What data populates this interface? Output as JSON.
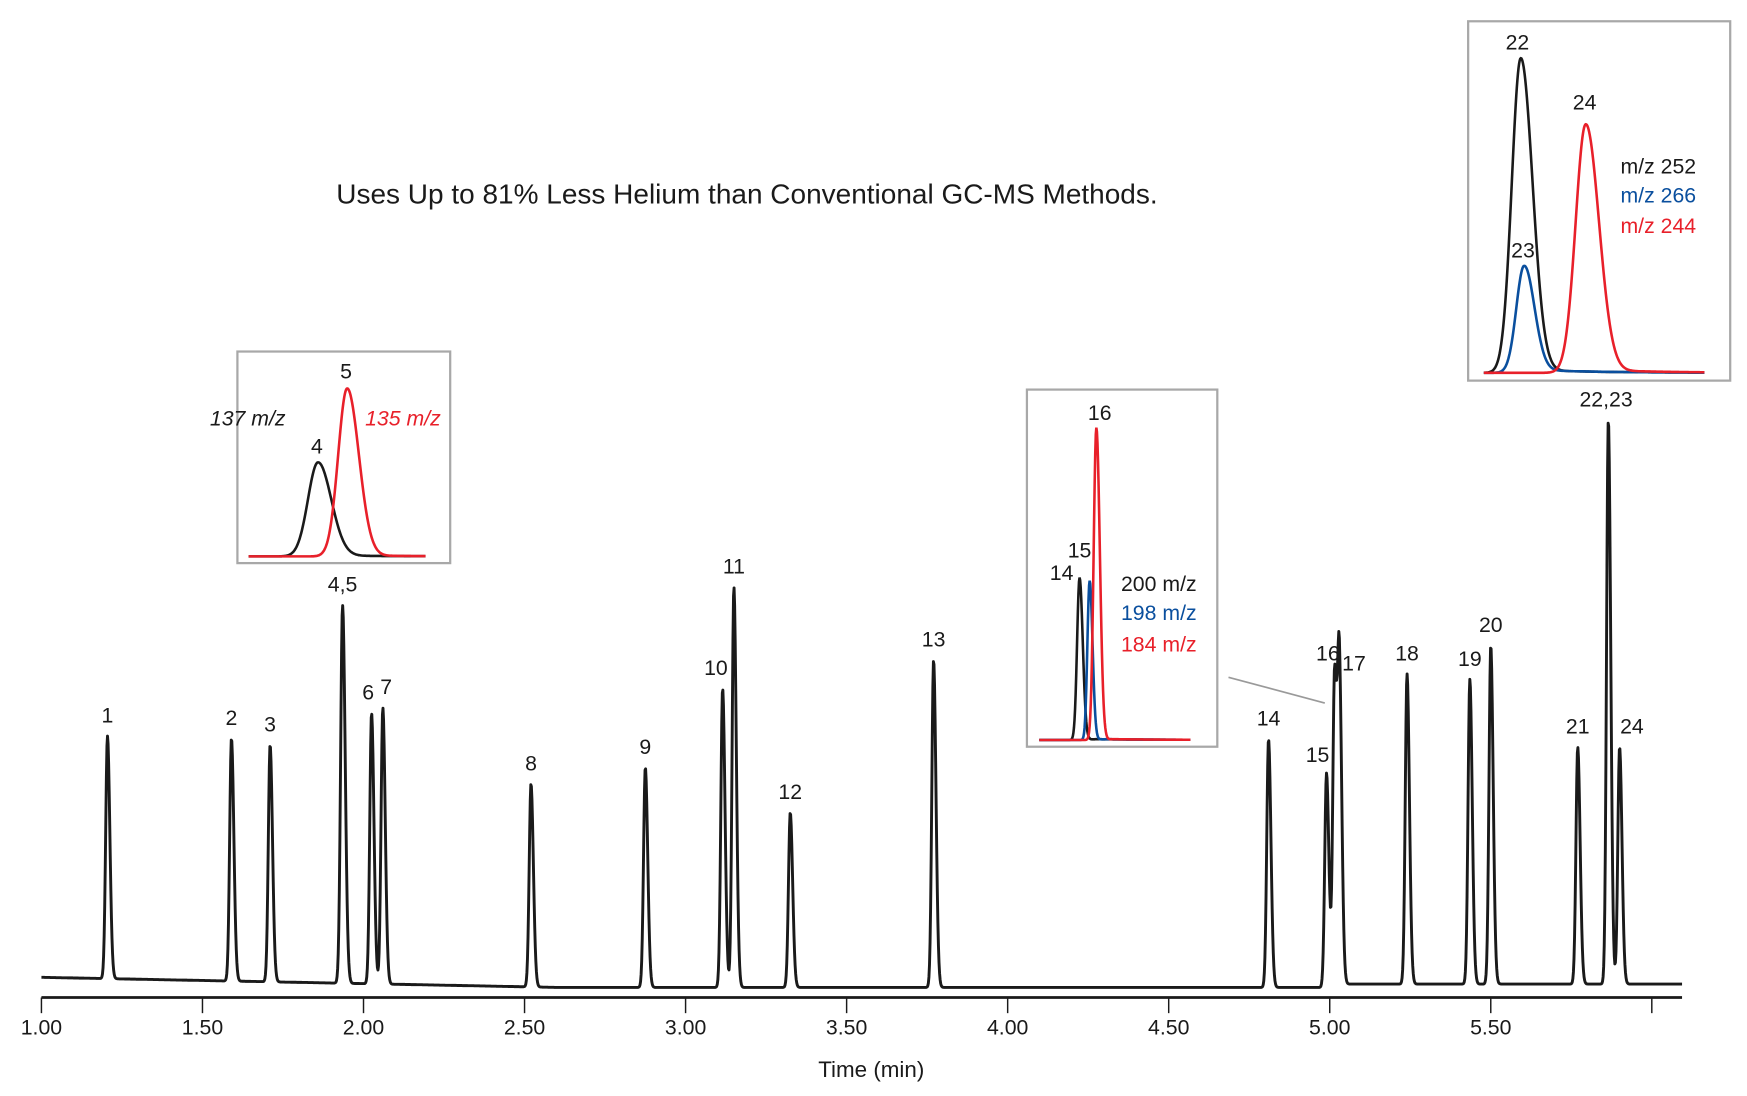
{
  "chart_data": {
    "type": "line",
    "title": "Uses Up to 81% Less Helium than Conventional GC-MS Methods.",
    "xlabel": "Time (min)",
    "ylabel": "",
    "xlim": [
      1.0,
      6.1
    ],
    "x_ticks": [
      "1.00",
      "1.50",
      "2.00",
      "2.50",
      "3.00",
      "3.50",
      "4.00",
      "4.50",
      "5.00",
      "5.50",
      ""
    ],
    "grid": false,
    "trace_color": "#1a1a1a",
    "peaks": [
      {
        "label": "1",
        "time": 1.205,
        "rel_height": 43
      },
      {
        "label": "2",
        "time": 1.59,
        "rel_height": 43
      },
      {
        "label": "3",
        "time": 1.71,
        "rel_height": 42
      },
      {
        "label": "4,5",
        "time": 1.935,
        "rel_height": 67
      },
      {
        "label": "6",
        "time": 2.025,
        "rel_height": 48
      },
      {
        "label": "7",
        "time": 2.06,
        "rel_height": 49
      },
      {
        "label": "8",
        "time": 2.52,
        "rel_height": 36
      },
      {
        "label": "9",
        "time": 2.875,
        "rel_height": 39
      },
      {
        "label": "10",
        "time": 3.115,
        "rel_height": 53
      },
      {
        "label": "11",
        "time": 3.15,
        "rel_height": 71
      },
      {
        "label": "12",
        "time": 3.325,
        "rel_height": 31
      },
      {
        "label": "13",
        "time": 3.77,
        "rel_height": 58
      },
      {
        "label": "14",
        "time": 4.81,
        "rel_height": 44
      },
      {
        "label": "15",
        "time": 4.99,
        "rel_height": 38
      },
      {
        "label": "16",
        "time": 5.015,
        "rel_height": 55
      },
      {
        "label": "17",
        "time": 5.03,
        "rel_height": 54
      },
      {
        "label": "18",
        "time": 5.24,
        "rel_height": 55
      },
      {
        "label": "19",
        "time": 5.435,
        "rel_height": 54
      },
      {
        "label": "20",
        "time": 5.5,
        "rel_height": 60
      },
      {
        "label": "21",
        "time": 5.77,
        "rel_height": 42
      },
      {
        "label": "22,23",
        "time": 5.865,
        "rel_height": 100
      },
      {
        "label": "24",
        "time": 5.9,
        "rel_height": 42
      }
    ],
    "insets": [
      {
        "series": [
          {
            "name": "137 m/z",
            "peak_label": "4",
            "color": "#1a1a1a",
            "rel_height": 56
          },
          {
            "name": "135 m/z",
            "peak_label": "5",
            "color": "#e8202a",
            "rel_height": 100
          }
        ]
      },
      {
        "series": [
          {
            "name": "200 m/z",
            "peak_label": "14",
            "color": "#1a1a1a",
            "rel_height": 52
          },
          {
            "name": "198 m/z",
            "peak_label": "15",
            "color": "#0a4f9e",
            "rel_height": 51
          },
          {
            "name": "184 m/z",
            "peak_label": "16",
            "color": "#e8202a",
            "rel_height": 100
          }
        ]
      },
      {
        "series": [
          {
            "name": "m/z 252",
            "peak_label": "22",
            "color": "#1a1a1a",
            "rel_height": 100
          },
          {
            "name": "m/z 266",
            "peak_label": "23",
            "color": "#0a4f9e",
            "rel_height": 34
          },
          {
            "name": "m/z 244",
            "peak_label": "24",
            "color": "#e8202a",
            "rel_height": 79
          }
        ]
      }
    ]
  }
}
